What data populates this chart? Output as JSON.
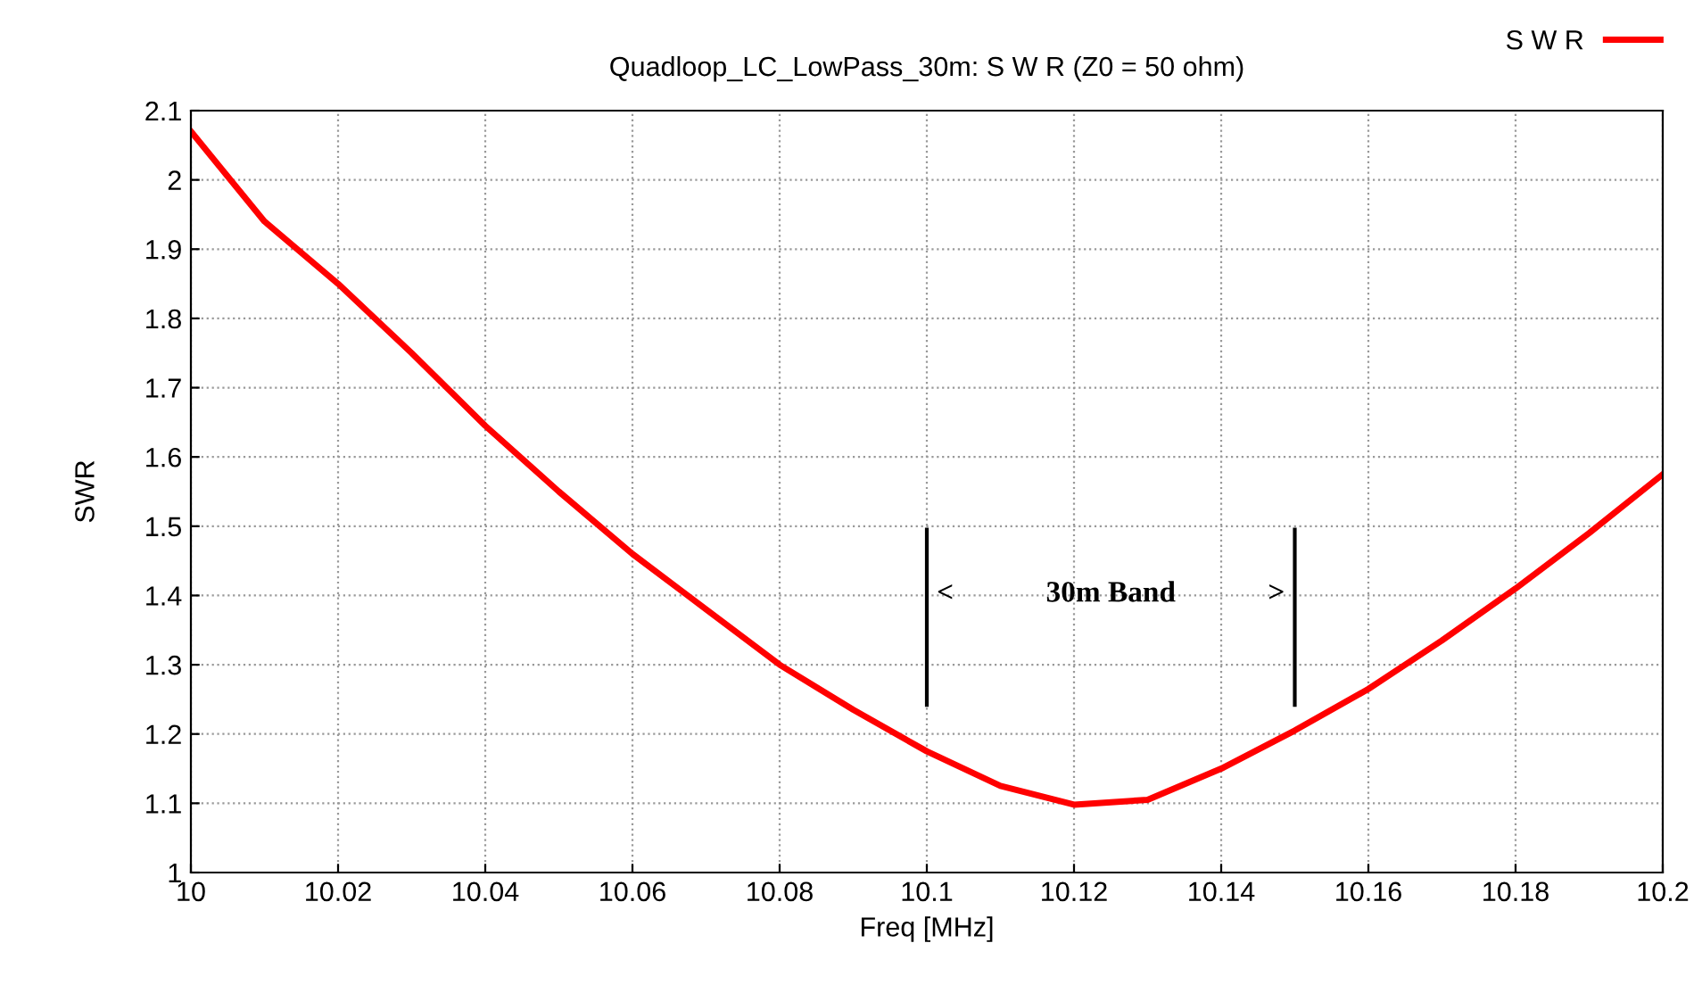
{
  "chart_data": {
    "type": "line",
    "title": "Quadloop_LC_LowPass_30m: S W R (Z0 = 50 ohm)",
    "xlabel": "Freq [MHz]",
    "ylabel": "SWR",
    "x": [
      10.0,
      10.01,
      10.02,
      10.03,
      10.04,
      10.05,
      10.06,
      10.07,
      10.08,
      10.09,
      10.1,
      10.11,
      10.12,
      10.13,
      10.14,
      10.15,
      10.16,
      10.17,
      10.18,
      10.19,
      10.2
    ],
    "series": [
      {
        "name": "S W R",
        "color": "#ff0000",
        "values": [
          2.07,
          1.94,
          1.85,
          1.75,
          1.645,
          1.55,
          1.46,
          1.38,
          1.3,
          1.235,
          1.175,
          1.125,
          1.098,
          1.105,
          1.15,
          1.205,
          1.265,
          1.335,
          1.41,
          1.49,
          1.575
        ]
      }
    ],
    "xlim": [
      10.0,
      10.2
    ],
    "xticks": [
      10,
      10.02,
      10.04,
      10.06,
      10.08,
      10.1,
      10.12,
      10.14,
      10.16,
      10.18,
      10.2
    ],
    "ylim": [
      1,
      2.1
    ],
    "yticks": [
      1,
      1.1,
      1.2,
      1.3,
      1.4,
      1.5,
      1.6,
      1.7,
      1.8,
      1.9,
      2,
      2.1
    ],
    "ref_lines": [
      {
        "axis": "x",
        "value": 10.1,
        "color": "#000000"
      },
      {
        "axis": "x",
        "value": 10.15,
        "color": "#000000"
      }
    ],
    "annotations": [
      "<",
      "30m Band",
      ">"
    ],
    "grid": true,
    "legend": "top right",
    "marker": "none",
    "line_style": "solid"
  }
}
